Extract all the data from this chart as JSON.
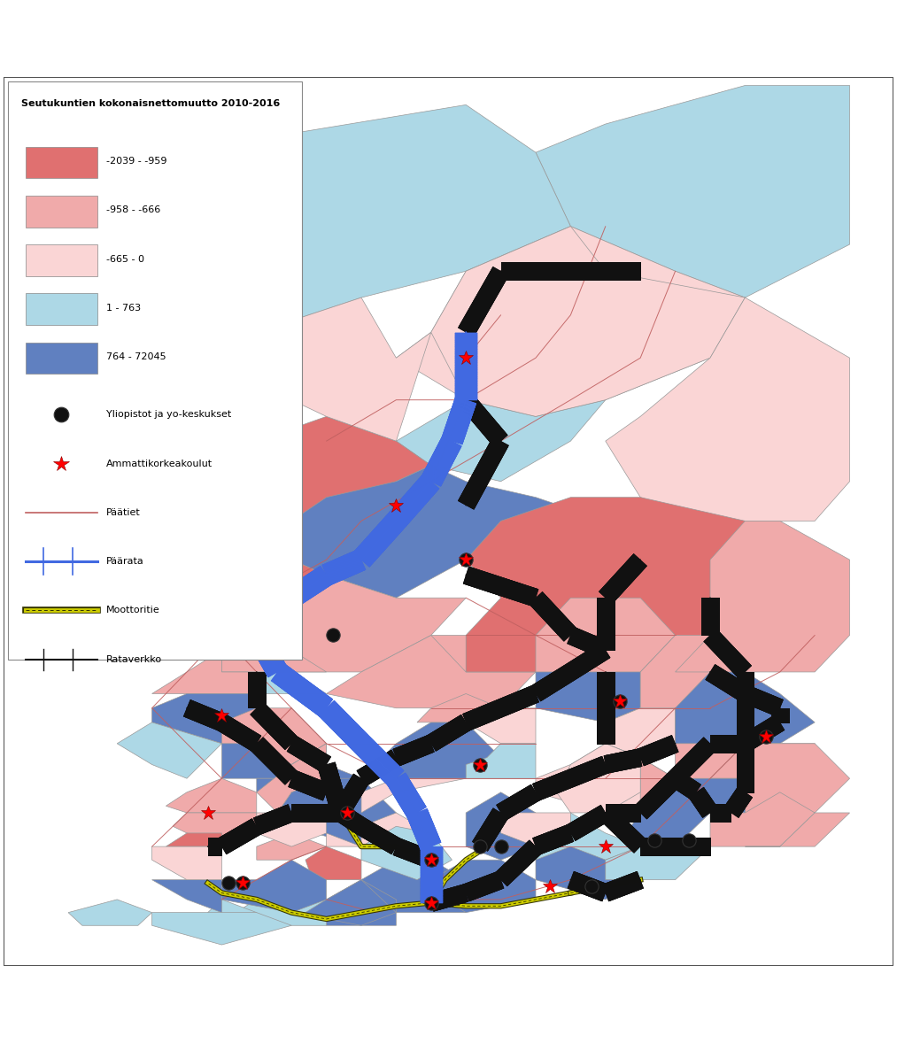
{
  "legend_title": "Seutukuntien kokonaisnettomuutto 2010-2016",
  "categories": [
    "-2039 - -959",
    "-958 - -666",
    "-665 - 0",
    "1 - 763",
    "764 - 72045"
  ],
  "colors": [
    "#E07070",
    "#F0AAAA",
    "#FAD5D5",
    "#ADD8E6",
    "#6080C0"
  ],
  "road_color": "#C06060",
  "mainrail_color": "#4169E1",
  "motorway_color_outer": "#333300",
  "motorway_color_inner": "#CCCC00",
  "railnet_color": "#111111",
  "region_border": "#999999",
  "figure_bg": "#FFFFFF"
}
